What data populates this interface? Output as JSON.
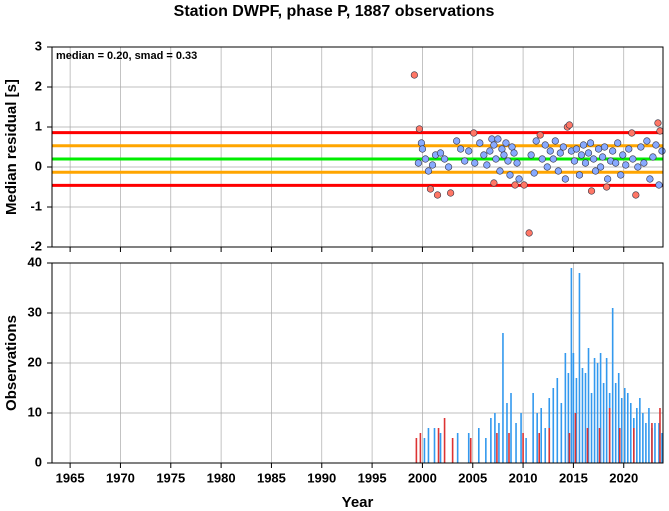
{
  "chart_data": [
    {
      "type": "scatter",
      "title": "Station DWPF, phase P, 1887 observations",
      "annotation": "median = 0.20, smad = 0.33",
      "ylabel": "Median residual [s]",
      "xlim": [
        1963.2,
        2023.9
      ],
      "xticks": [
        1965,
        1970,
        1975,
        1980,
        1985,
        1990,
        1995,
        2000,
        2005,
        2010,
        2015,
        2020
      ],
      "ylim": [
        -2,
        3
      ],
      "yticks": [
        -2,
        -1,
        0,
        1,
        2,
        3
      ],
      "grid": true,
      "hlines": [
        {
          "value": 0.86,
          "color": "#ff0000"
        },
        {
          "value": 0.53,
          "color": "#ffa500"
        },
        {
          "value": 0.2,
          "color": "#00ee00"
        },
        {
          "value": -0.13,
          "color": "#ffa500"
        },
        {
          "value": -0.46,
          "color": "#ff0000"
        }
      ],
      "series": [
        {
          "color": "#88aaff",
          "x": [
            1999.6,
            1999.9,
            2000.0,
            2000.3,
            2000.6,
            2001.0,
            2001.3,
            2001.8,
            2002.2,
            2002.6,
            2003.4,
            2003.8,
            2004.2,
            2004.6,
            2005.2,
            2005.7,
            2006.1,
            2006.4,
            2006.7,
            2006.9,
            2007.1,
            2007.3,
            2007.5,
            2007.7,
            2007.9,
            2008.1,
            2008.3,
            2008.5,
            2008.7,
            2008.9,
            2009.1,
            2009.4,
            2009.6,
            2010.8,
            2011.1,
            2011.3,
            2011.9,
            2012.2,
            2012.4,
            2012.7,
            2013.0,
            2013.2,
            2013.5,
            2013.7,
            2014.0,
            2014.2,
            2014.8,
            2015.1,
            2015.3,
            2015.6,
            2015.8,
            2016.0,
            2016.2,
            2016.5,
            2016.7,
            2017.0,
            2017.2,
            2017.5,
            2017.7,
            2017.9,
            2018.1,
            2018.4,
            2018.7,
            2018.9,
            2019.2,
            2019.4,
            2019.7,
            2019.9,
            2020.2,
            2020.5,
            2020.9,
            2021.4,
            2021.7,
            2022.0,
            2022.3,
            2022.6,
            2022.9,
            2023.2,
            2023.5,
            2023.8
          ],
          "values": [
            0.1,
            0.6,
            0.45,
            0.2,
            -0.1,
            0.05,
            0.3,
            0.35,
            0.2,
            0.0,
            0.65,
            0.45,
            0.15,
            0.4,
            0.1,
            0.6,
            0.3,
            0.05,
            0.4,
            0.7,
            0.55,
            0.2,
            0.7,
            -0.1,
            0.45,
            0.3,
            0.6,
            0.15,
            -0.2,
            0.5,
            0.35,
            0.1,
            -0.3,
            0.3,
            -0.15,
            0.65,
            0.2,
            0.55,
            0.0,
            0.4,
            0.2,
            0.65,
            -0.1,
            0.35,
            0.5,
            -0.3,
            0.4,
            0.15,
            0.45,
            -0.2,
            0.3,
            0.55,
            0.1,
            0.35,
            0.6,
            0.2,
            -0.1,
            0.45,
            0.0,
            0.25,
            0.5,
            -0.3,
            0.15,
            0.4,
            0.1,
            0.6,
            -0.2,
            0.3,
            0.05,
            0.45,
            0.2,
            0.0,
            0.5,
            0.1,
            0.65,
            -0.3,
            0.25,
            0.55,
            -0.45,
            0.4
          ]
        },
        {
          "color": "#ff7766",
          "x": [
            1999.2,
            1999.7,
            2000.8,
            2001.5,
            2002.8,
            2005.1,
            2007.1,
            2009.2,
            2010.1,
            2010.6,
            2011.7,
            2014.4,
            2014.6,
            2016.8,
            2018.3,
            2020.8,
            2021.2,
            2023.4,
            2023.6
          ],
          "values": [
            2.3,
            0.95,
            -0.55,
            -0.7,
            -0.65,
            0.85,
            -0.4,
            -0.45,
            -0.45,
            -1.65,
            0.8,
            1.0,
            1.05,
            -0.6,
            -0.5,
            0.85,
            -0.7,
            1.1,
            0.9
          ]
        }
      ]
    },
    {
      "type": "bar",
      "ylabel": "Observations",
      "xlabel": "Year",
      "xlim": [
        1963.2,
        2023.9
      ],
      "xticks": [
        1965,
        1970,
        1975,
        1980,
        1985,
        1990,
        1995,
        2000,
        2005,
        2010,
        2015,
        2020
      ],
      "ylim": [
        0,
        40
      ],
      "yticks": [
        0,
        10,
        20,
        30,
        40
      ],
      "grid": true,
      "series": [
        {
          "color": "#3399ee",
          "x": [
            2000.2,
            2000.6,
            2001.2,
            2001.8,
            2003.5,
            2004.6,
            2005.6,
            2006.3,
            2006.8,
            2007.2,
            2007.6,
            2008.0,
            2008.4,
            2008.8,
            2009.3,
            2009.8,
            2010.3,
            2011.0,
            2011.4,
            2011.8,
            2012.2,
            2012.6,
            2013.0,
            2013.4,
            2013.8,
            2014.2,
            2014.5,
            2014.8,
            2015.0,
            2015.3,
            2015.6,
            2015.9,
            2016.2,
            2016.5,
            2016.8,
            2017.1,
            2017.4,
            2017.7,
            2018.0,
            2018.3,
            2018.6,
            2018.9,
            2019.2,
            2019.5,
            2019.8,
            2020.1,
            2020.4,
            2020.7,
            2021.0,
            2021.3,
            2021.6,
            2021.9,
            2022.2,
            2022.5,
            2022.8,
            2023.1,
            2023.5,
            2023.8
          ],
          "values": [
            5,
            7,
            7,
            6,
            6,
            6,
            7,
            5,
            9,
            10,
            8,
            26,
            12,
            14,
            8,
            10,
            5,
            14,
            10,
            11,
            7,
            13,
            15,
            17,
            12,
            22,
            18,
            39,
            22,
            17,
            38,
            19,
            18,
            23,
            14,
            21,
            20,
            22,
            16,
            21,
            14,
            31,
            16,
            18,
            13,
            15,
            14,
            12,
            9,
            11,
            13,
            10,
            8,
            11,
            7,
            8,
            8,
            6
          ]
        },
        {
          "color": "#dd3333",
          "x": [
            1999.4,
            1999.8,
            2001.6,
            2002.2,
            2003.0,
            2004.8,
            2007.4,
            2008.6,
            2010.0,
            2011.6,
            2012.6,
            2014.6,
            2015.2,
            2016.4,
            2017.6,
            2018.6,
            2019.6,
            2021.0,
            2022.8,
            2023.6
          ],
          "values": [
            5,
            6,
            7,
            9,
            5,
            5,
            6,
            6,
            6,
            6,
            7,
            6,
            10,
            7,
            7,
            11,
            7,
            7,
            8,
            11
          ]
        }
      ]
    }
  ]
}
